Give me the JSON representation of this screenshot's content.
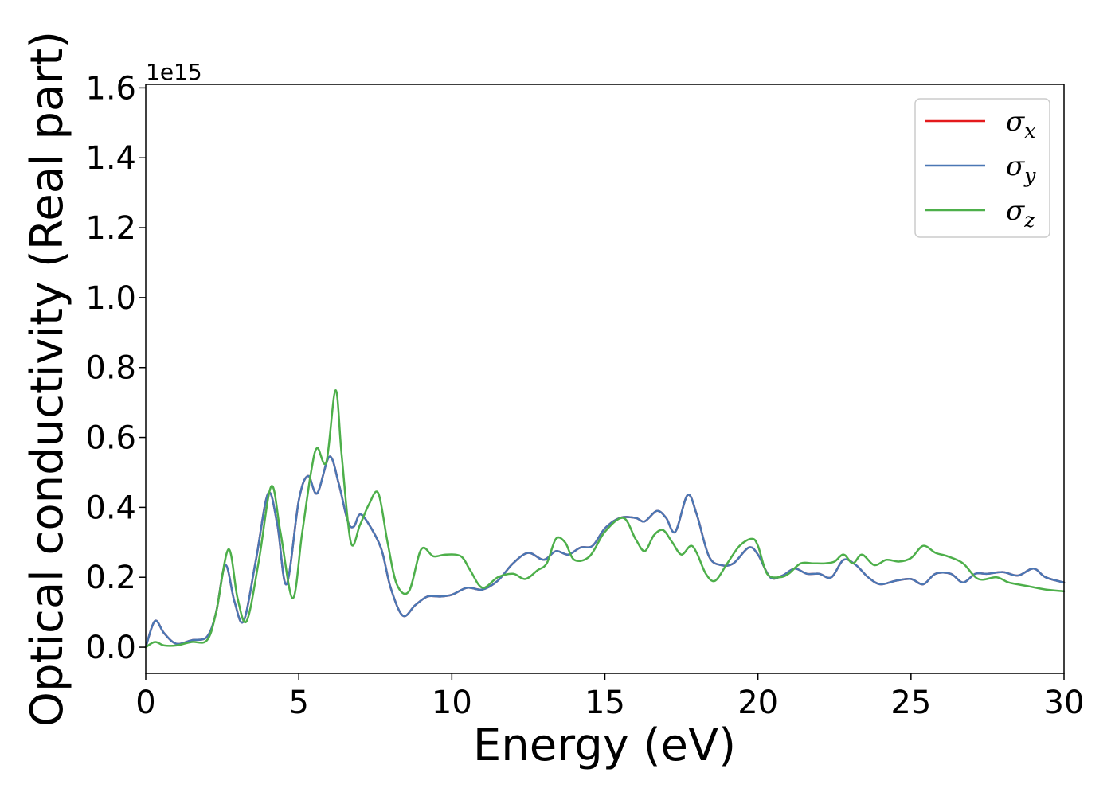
{
  "chart_data": {
    "type": "line",
    "xlabel": "Energy (eV)",
    "ylabel": "Optical conductivity (Real part)",
    "y_offset_text": "1e15",
    "xlim": [
      0,
      30
    ],
    "ylim": [
      -0.075,
      1.61
    ],
    "x_ticks": [
      0,
      5,
      10,
      15,
      20,
      25,
      30
    ],
    "x_tick_labels": [
      "0",
      "5",
      "10",
      "15",
      "20",
      "25",
      "30"
    ],
    "y_ticks": [
      0.0,
      0.2,
      0.4,
      0.6,
      0.8,
      1.0,
      1.2,
      1.4,
      1.6
    ],
    "y_tick_labels": [
      "0.0",
      "0.2",
      "0.4",
      "0.6",
      "0.8",
      "1.0",
      "1.2",
      "1.4",
      "1.6"
    ],
    "grid": false,
    "legend_position": "top-right",
    "series": [
      {
        "name": "σx",
        "label_base": "σ",
        "label_sub": "x",
        "color": "#e41a1c",
        "points": [
          [
            0,
            0.0
          ],
          [
            0.3,
            0.075
          ],
          [
            0.6,
            0.04
          ],
          [
            1.0,
            0.01
          ],
          [
            1.5,
            0.02
          ],
          [
            2.0,
            0.03
          ],
          [
            2.3,
            0.1
          ],
          [
            2.6,
            0.235
          ],
          [
            2.9,
            0.13
          ],
          [
            3.2,
            0.075
          ],
          [
            3.6,
            0.25
          ],
          [
            4.0,
            0.44
          ],
          [
            4.3,
            0.35
          ],
          [
            4.6,
            0.18
          ],
          [
            5.0,
            0.42
          ],
          [
            5.3,
            0.49
          ],
          [
            5.6,
            0.44
          ],
          [
            6.0,
            0.545
          ],
          [
            6.3,
            0.47
          ],
          [
            6.6,
            0.36
          ],
          [
            6.8,
            0.345
          ],
          [
            7.0,
            0.38
          ],
          [
            7.3,
            0.35
          ],
          [
            7.7,
            0.28
          ],
          [
            8.0,
            0.17
          ],
          [
            8.4,
            0.09
          ],
          [
            8.8,
            0.12
          ],
          [
            9.2,
            0.145
          ],
          [
            9.6,
            0.145
          ],
          [
            10.0,
            0.15
          ],
          [
            10.5,
            0.17
          ],
          [
            11.0,
            0.165
          ],
          [
            11.5,
            0.19
          ],
          [
            12.0,
            0.24
          ],
          [
            12.5,
            0.27
          ],
          [
            13.0,
            0.25
          ],
          [
            13.4,
            0.275
          ],
          [
            13.8,
            0.265
          ],
          [
            14.2,
            0.285
          ],
          [
            14.6,
            0.29
          ],
          [
            15.0,
            0.34
          ],
          [
            15.5,
            0.37
          ],
          [
            16.0,
            0.37
          ],
          [
            16.3,
            0.36
          ],
          [
            16.7,
            0.39
          ],
          [
            17.0,
            0.37
          ],
          [
            17.3,
            0.33
          ],
          [
            17.7,
            0.435
          ],
          [
            18.0,
            0.38
          ],
          [
            18.4,
            0.26
          ],
          [
            18.8,
            0.235
          ],
          [
            19.2,
            0.24
          ],
          [
            19.7,
            0.285
          ],
          [
            20.0,
            0.265
          ],
          [
            20.4,
            0.2
          ],
          [
            20.8,
            0.205
          ],
          [
            21.2,
            0.225
          ],
          [
            21.6,
            0.21
          ],
          [
            22.0,
            0.21
          ],
          [
            22.4,
            0.2
          ],
          [
            22.8,
            0.25
          ],
          [
            23.2,
            0.235
          ],
          [
            23.6,
            0.2
          ],
          [
            24.0,
            0.18
          ],
          [
            24.5,
            0.19
          ],
          [
            25.0,
            0.195
          ],
          [
            25.4,
            0.18
          ],
          [
            25.8,
            0.21
          ],
          [
            26.3,
            0.21
          ],
          [
            26.7,
            0.185
          ],
          [
            27.1,
            0.21
          ],
          [
            27.5,
            0.21
          ],
          [
            28.0,
            0.215
          ],
          [
            28.5,
            0.205
          ],
          [
            29.0,
            0.225
          ],
          [
            29.4,
            0.2
          ],
          [
            30.0,
            0.185
          ]
        ]
      },
      {
        "name": "σy",
        "label_base": "σ",
        "label_sub": "y",
        "color": "#4a77b4",
        "points": [
          [
            0,
            0.0
          ],
          [
            0.3,
            0.075
          ],
          [
            0.6,
            0.04
          ],
          [
            1.0,
            0.01
          ],
          [
            1.5,
            0.02
          ],
          [
            2.0,
            0.03
          ],
          [
            2.3,
            0.1
          ],
          [
            2.6,
            0.235
          ],
          [
            2.9,
            0.13
          ],
          [
            3.2,
            0.075
          ],
          [
            3.6,
            0.25
          ],
          [
            4.0,
            0.44
          ],
          [
            4.3,
            0.35
          ],
          [
            4.6,
            0.18
          ],
          [
            5.0,
            0.42
          ],
          [
            5.3,
            0.49
          ],
          [
            5.6,
            0.44
          ],
          [
            6.0,
            0.545
          ],
          [
            6.3,
            0.47
          ],
          [
            6.6,
            0.36
          ],
          [
            6.8,
            0.345
          ],
          [
            7.0,
            0.38
          ],
          [
            7.3,
            0.35
          ],
          [
            7.7,
            0.28
          ],
          [
            8.0,
            0.17
          ],
          [
            8.4,
            0.09
          ],
          [
            8.8,
            0.12
          ],
          [
            9.2,
            0.145
          ],
          [
            9.6,
            0.145
          ],
          [
            10.0,
            0.15
          ],
          [
            10.5,
            0.17
          ],
          [
            11.0,
            0.165
          ],
          [
            11.5,
            0.19
          ],
          [
            12.0,
            0.24
          ],
          [
            12.5,
            0.27
          ],
          [
            13.0,
            0.25
          ],
          [
            13.4,
            0.275
          ],
          [
            13.8,
            0.265
          ],
          [
            14.2,
            0.285
          ],
          [
            14.6,
            0.29
          ],
          [
            15.0,
            0.34
          ],
          [
            15.5,
            0.37
          ],
          [
            16.0,
            0.37
          ],
          [
            16.3,
            0.36
          ],
          [
            16.7,
            0.39
          ],
          [
            17.0,
            0.37
          ],
          [
            17.3,
            0.33
          ],
          [
            17.7,
            0.435
          ],
          [
            18.0,
            0.38
          ],
          [
            18.4,
            0.26
          ],
          [
            18.8,
            0.235
          ],
          [
            19.2,
            0.24
          ],
          [
            19.7,
            0.285
          ],
          [
            20.0,
            0.265
          ],
          [
            20.4,
            0.2
          ],
          [
            20.8,
            0.205
          ],
          [
            21.2,
            0.225
          ],
          [
            21.6,
            0.21
          ],
          [
            22.0,
            0.21
          ],
          [
            22.4,
            0.2
          ],
          [
            22.8,
            0.25
          ],
          [
            23.2,
            0.235
          ],
          [
            23.6,
            0.2
          ],
          [
            24.0,
            0.18
          ],
          [
            24.5,
            0.19
          ],
          [
            25.0,
            0.195
          ],
          [
            25.4,
            0.18
          ],
          [
            25.8,
            0.21
          ],
          [
            26.3,
            0.21
          ],
          [
            26.7,
            0.185
          ],
          [
            27.1,
            0.21
          ],
          [
            27.5,
            0.21
          ],
          [
            28.0,
            0.215
          ],
          [
            28.5,
            0.205
          ],
          [
            29.0,
            0.225
          ],
          [
            29.4,
            0.2
          ],
          [
            30.0,
            0.185
          ]
        ]
      },
      {
        "name": "σz",
        "label_base": "σ",
        "label_sub": "z",
        "color": "#4daf4a",
        "points": [
          [
            0,
            0.0
          ],
          [
            0.3,
            0.015
          ],
          [
            0.6,
            0.005
          ],
          [
            1.0,
            0.005
          ],
          [
            1.5,
            0.015
          ],
          [
            2.0,
            0.02
          ],
          [
            2.3,
            0.1
          ],
          [
            2.7,
            0.28
          ],
          [
            3.0,
            0.14
          ],
          [
            3.3,
            0.075
          ],
          [
            3.7,
            0.25
          ],
          [
            4.1,
            0.46
          ],
          [
            4.4,
            0.33
          ],
          [
            4.8,
            0.14
          ],
          [
            5.1,
            0.32
          ],
          [
            5.4,
            0.5
          ],
          [
            5.6,
            0.57
          ],
          [
            5.9,
            0.53
          ],
          [
            6.2,
            0.735
          ],
          [
            6.4,
            0.55
          ],
          [
            6.7,
            0.3
          ],
          [
            7.0,
            0.35
          ],
          [
            7.3,
            0.41
          ],
          [
            7.6,
            0.44
          ],
          [
            7.9,
            0.3
          ],
          [
            8.2,
            0.18
          ],
          [
            8.6,
            0.16
          ],
          [
            9.0,
            0.28
          ],
          [
            9.4,
            0.26
          ],
          [
            9.8,
            0.265
          ],
          [
            10.3,
            0.26
          ],
          [
            10.6,
            0.22
          ],
          [
            11.0,
            0.17
          ],
          [
            11.5,
            0.2
          ],
          [
            12.0,
            0.21
          ],
          [
            12.4,
            0.195
          ],
          [
            12.8,
            0.22
          ],
          [
            13.1,
            0.24
          ],
          [
            13.4,
            0.31
          ],
          [
            13.7,
            0.3
          ],
          [
            14.0,
            0.25
          ],
          [
            14.5,
            0.26
          ],
          [
            15.0,
            0.33
          ],
          [
            15.6,
            0.37
          ],
          [
            16.0,
            0.31
          ],
          [
            16.3,
            0.275
          ],
          [
            16.6,
            0.32
          ],
          [
            16.9,
            0.335
          ],
          [
            17.2,
            0.3
          ],
          [
            17.5,
            0.265
          ],
          [
            17.8,
            0.29
          ],
          [
            18.0,
            0.27
          ],
          [
            18.3,
            0.21
          ],
          [
            18.6,
            0.19
          ],
          [
            19.0,
            0.24
          ],
          [
            19.4,
            0.29
          ],
          [
            19.8,
            0.31
          ],
          [
            20.0,
            0.29
          ],
          [
            20.3,
            0.21
          ],
          [
            20.7,
            0.2
          ],
          [
            21.0,
            0.21
          ],
          [
            21.4,
            0.24
          ],
          [
            21.8,
            0.24
          ],
          [
            22.2,
            0.24
          ],
          [
            22.5,
            0.245
          ],
          [
            22.8,
            0.265
          ],
          [
            23.1,
            0.24
          ],
          [
            23.4,
            0.265
          ],
          [
            23.8,
            0.235
          ],
          [
            24.2,
            0.25
          ],
          [
            24.6,
            0.245
          ],
          [
            25.0,
            0.255
          ],
          [
            25.4,
            0.29
          ],
          [
            25.8,
            0.27
          ],
          [
            26.2,
            0.26
          ],
          [
            26.7,
            0.24
          ],
          [
            27.2,
            0.195
          ],
          [
            27.8,
            0.2
          ],
          [
            28.2,
            0.185
          ],
          [
            28.8,
            0.175
          ],
          [
            29.4,
            0.165
          ],
          [
            30.0,
            0.16
          ]
        ]
      }
    ]
  }
}
